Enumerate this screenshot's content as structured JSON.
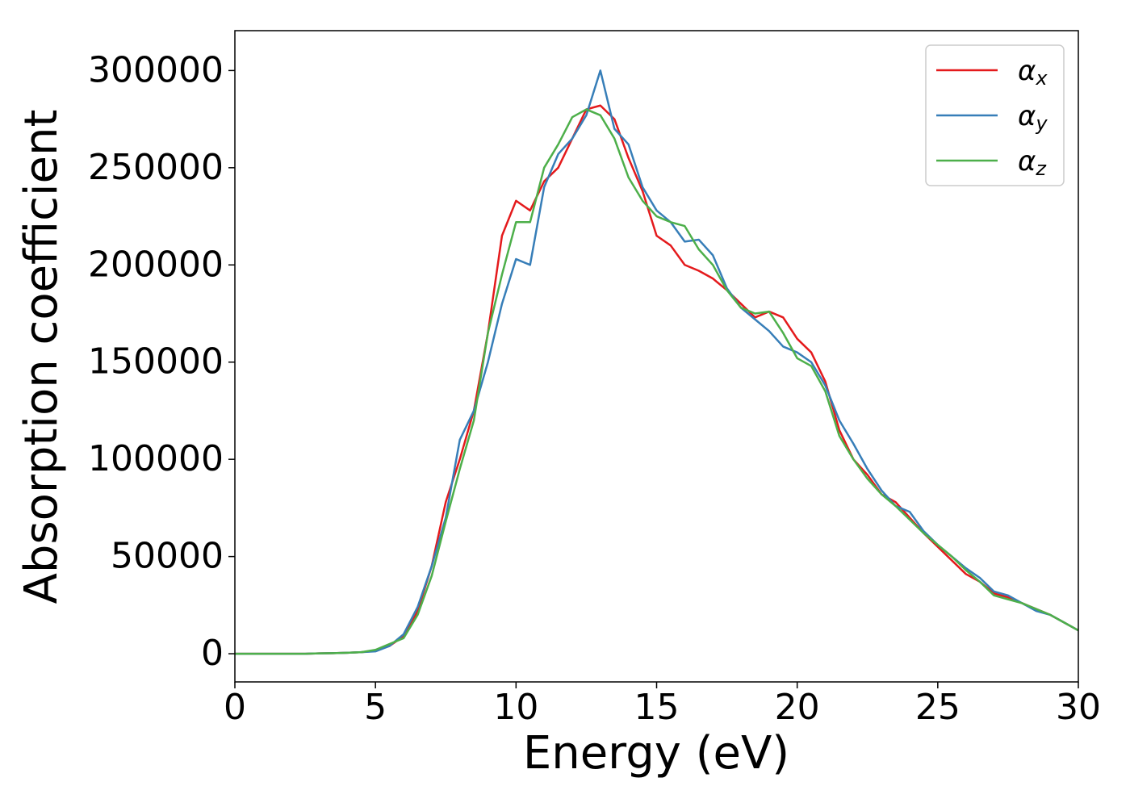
{
  "chart_data": {
    "type": "line",
    "xlabel": "Energy (eV)",
    "ylabel": "Absorption coefficient",
    "x": [
      0,
      0.5,
      1,
      1.5,
      2,
      2.5,
      3,
      3.5,
      4,
      4.5,
      5,
      5.5,
      6,
      6.5,
      7,
      7.5,
      8,
      8.5,
      9,
      9.5,
      10,
      10.5,
      11,
      11.5,
      12,
      12.5,
      13,
      13.5,
      14,
      14.5,
      15,
      15.5,
      16,
      16.5,
      17,
      17.5,
      18,
      18.5,
      19,
      19.5,
      20,
      20.5,
      21,
      21.5,
      22,
      22.5,
      23,
      23.5,
      24,
      24.5,
      25,
      25.5,
      26,
      26.5,
      27,
      27.5,
      28,
      28.5,
      29,
      29.5,
      30
    ],
    "series": [
      {
        "name": "αx",
        "color": "#e41a1c",
        "values": [
          0,
          0,
          0,
          0,
          0,
          0,
          200,
          300,
          500,
          800,
          1500,
          4000,
          9000,
          22000,
          45000,
          78000,
          100000,
          125000,
          165000,
          215000,
          233000,
          228000,
          243000,
          250000,
          265000,
          280000,
          282000,
          275000,
          255000,
          238000,
          215000,
          210000,
          200000,
          197000,
          193000,
          187000,
          180000,
          173000,
          176000,
          173000,
          162000,
          155000,
          140000,
          115000,
          100000,
          92000,
          82000,
          78000,
          70000,
          62000,
          55000,
          48000,
          41000,
          37000,
          31000,
          29000,
          26000,
          23000,
          20000,
          16000,
          12000
        ]
      },
      {
        "name": "αy",
        "color": "#377eb8",
        "values": [
          0,
          0,
          0,
          0,
          0,
          0,
          200,
          300,
          500,
          800,
          1200,
          4000,
          10000,
          24000,
          45000,
          70000,
          110000,
          125000,
          150000,
          180000,
          203000,
          200000,
          240000,
          257000,
          265000,
          277000,
          300000,
          270000,
          262000,
          240000,
          228000,
          222000,
          212000,
          213000,
          205000,
          188000,
          178000,
          172000,
          166000,
          158000,
          155000,
          150000,
          138000,
          120000,
          108000,
          95000,
          84000,
          76000,
          73000,
          63000,
          56000,
          50000,
          44000,
          39000,
          32000,
          30000,
          26000,
          22000,
          20000,
          16000,
          12000
        ]
      },
      {
        "name": "αz",
        "color": "#4daf4a",
        "values": [
          0,
          0,
          0,
          0,
          0,
          0,
          200,
          300,
          500,
          800,
          2000,
          5000,
          8000,
          20000,
          40000,
          68000,
          95000,
          120000,
          165000,
          195000,
          222000,
          222000,
          250000,
          262000,
          276000,
          280000,
          277000,
          265000,
          245000,
          233000,
          225000,
          222000,
          220000,
          208000,
          200000,
          187000,
          178000,
          175000,
          176000,
          165000,
          152000,
          148000,
          135000,
          112000,
          100000,
          90000,
          82000,
          76000,
          69000,
          62000,
          56000,
          50000,
          43000,
          37000,
          30000,
          28000,
          26000,
          23000,
          20000,
          16000,
          12000
        ]
      }
    ],
    "xlim": [
      0,
      30
    ],
    "xticks": [
      0,
      5,
      10,
      15,
      20,
      25,
      30
    ],
    "ylim": [
      -14500,
      320500
    ],
    "yticks": [
      0,
      50000,
      100000,
      150000,
      200000,
      250000,
      300000
    ],
    "grid": false,
    "legend": "upper right"
  }
}
